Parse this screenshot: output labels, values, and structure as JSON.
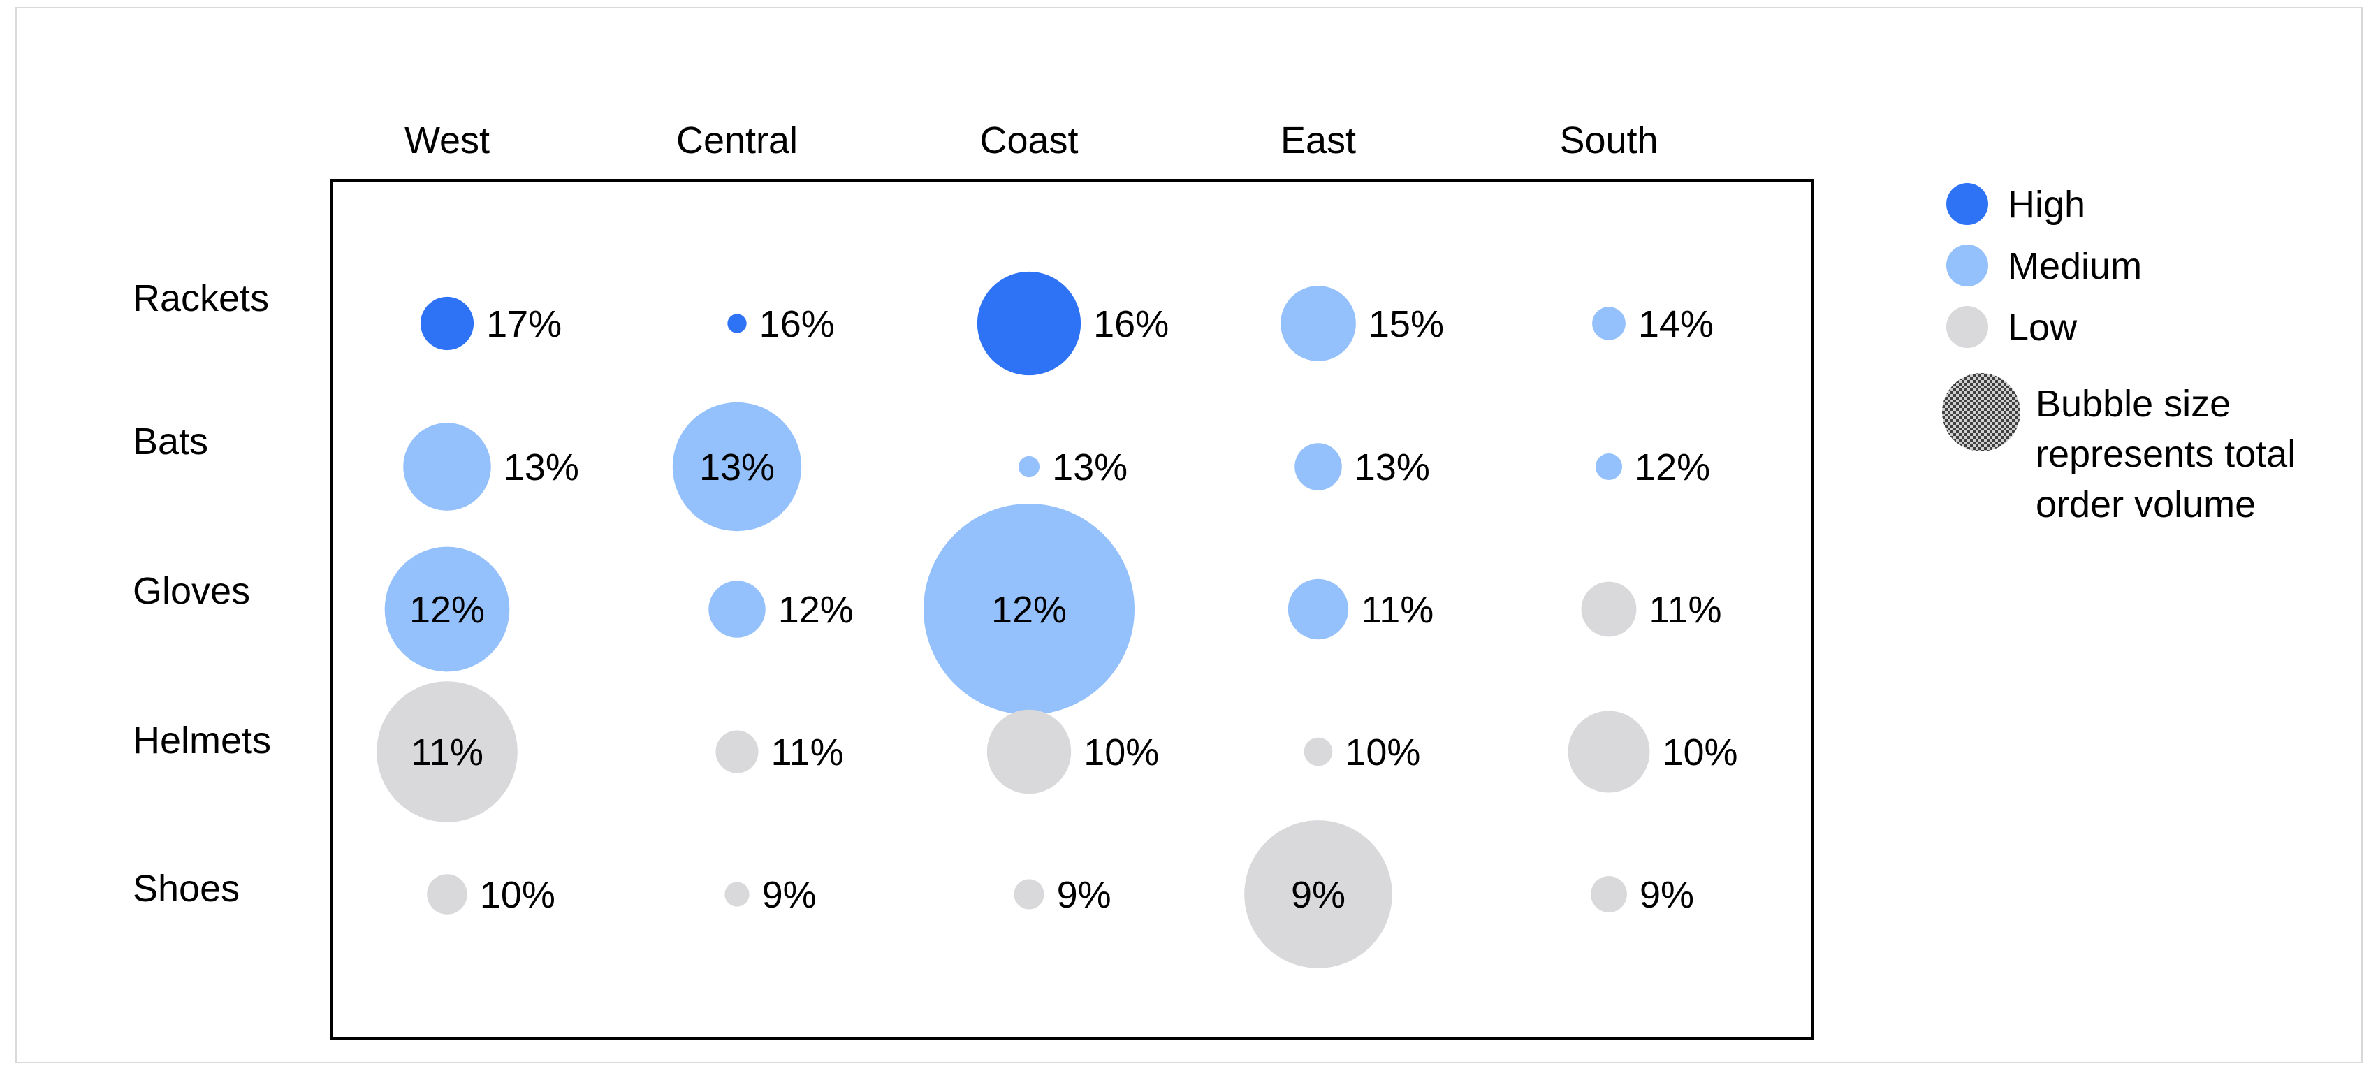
{
  "chart_data": {
    "type": "bubble-matrix",
    "columns": [
      "West",
      "Central",
      "Coast",
      "East",
      "South"
    ],
    "rows": [
      "Rackets",
      "Bats",
      "Gloves",
      "Helmets",
      "Shoes"
    ],
    "cells": [
      [
        {
          "pct": "17%",
          "level": "High",
          "volume": 1.4
        },
        {
          "pct": "16%",
          "level": "High",
          "volume": 0.18
        },
        {
          "pct": "16%",
          "level": "High",
          "volume": 5.3
        },
        {
          "pct": "15%",
          "level": "Medium",
          "volume": 2.8
        },
        {
          "pct": "14%",
          "level": "Medium",
          "volume": 0.55
        }
      ],
      [
        {
          "pct": "13%",
          "level": "Medium",
          "volume": 3.8
        },
        {
          "pct": "13%",
          "level": "Medium",
          "volume": 8.2
        },
        {
          "pct": "13%",
          "level": "Medium",
          "volume": 0.22
        },
        {
          "pct": "13%",
          "level": "Medium",
          "volume": 1.1
        },
        {
          "pct": "12%",
          "level": "Medium",
          "volume": 0.35
        }
      ],
      [
        {
          "pct": "12%",
          "level": "Medium",
          "volume": 7.7
        },
        {
          "pct": "12%",
          "level": "Medium",
          "volume": 1.6
        },
        {
          "pct": "12%",
          "level": "Medium",
          "volume": 22.0
        },
        {
          "pct": "11%",
          "level": "Medium",
          "volume": 1.8
        },
        {
          "pct": "11%",
          "level": "Low",
          "volume": 1.5
        }
      ],
      [
        {
          "pct": "11%",
          "level": "Low",
          "volume": 9.8
        },
        {
          "pct": "11%",
          "level": "Low",
          "volume": 0.9
        },
        {
          "pct": "10%",
          "level": "Low",
          "volume": 3.5
        },
        {
          "pct": "10%",
          "level": "Low",
          "volume": 0.4
        },
        {
          "pct": "10%",
          "level": "Low",
          "volume": 3.3
        }
      ],
      [
        {
          "pct": "10%",
          "level": "Low",
          "volume": 0.8
        },
        {
          "pct": "9%",
          "level": "Low",
          "volume": 0.3
        },
        {
          "pct": "9%",
          "level": "Low",
          "volume": 0.45
        },
        {
          "pct": "9%",
          "level": "Low",
          "volume": 10.8
        },
        {
          "pct": "9%",
          "level": "Low",
          "volume": 0.65
        }
      ]
    ],
    "colors": {
      "High": "#2e72f6",
      "Medium": "#94c1fb",
      "Low": "#d9d9db"
    },
    "legend": {
      "position": "right",
      "items": [
        {
          "label": "High",
          "level": "High"
        },
        {
          "label": "Medium",
          "level": "Medium"
        },
        {
          "label": "Low",
          "level": "Low"
        }
      ],
      "size_note": [
        "Bubble size",
        "represents total",
        "order volume"
      ]
    }
  }
}
